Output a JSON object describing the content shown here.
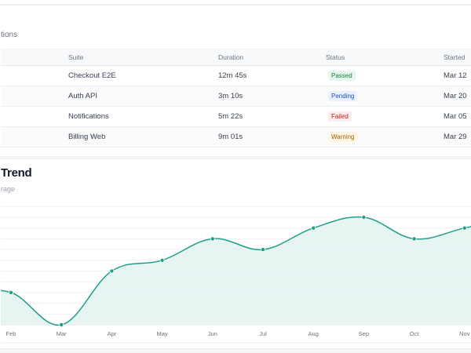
{
  "table_section": {
    "subtitle_fragment": "tions",
    "columns": [
      "",
      "Suite",
      "Duration",
      "Status",
      "Started"
    ],
    "rows": [
      {
        "suite": "Checkout E2E",
        "duration": "12m 45s",
        "status": "Passed",
        "started": "Mar 12"
      },
      {
        "suite": "Auth API",
        "duration": "3m 10s",
        "status": "Pending",
        "started": "Mar 20"
      },
      {
        "suite": "Notifications",
        "duration": "5m 22s",
        "status": "Failed",
        "started": "Mar 05"
      },
      {
        "suite": "Billing Web",
        "duration": "9m 01s",
        "status": "Warning",
        "started": "Mar 29"
      }
    ],
    "status_colors": {
      "Passed": {
        "fg": "#15803d",
        "bg": "#e7f7ee"
      },
      "Pending": {
        "fg": "#1d4ed8",
        "bg": "#eaf1fd"
      },
      "Failed": {
        "fg": "#b91c1c",
        "bg": "#fdecec"
      },
      "Warning": {
        "fg": "#a16207",
        "bg": "#fdf6e3"
      }
    }
  },
  "chart_section": {
    "title_fragment": "Trend",
    "subtitle_fragment": "rage"
  },
  "chart_data": {
    "type": "area",
    "title": "Trend",
    "subtitle": "rage",
    "categories": [
      "Feb",
      "Mar",
      "Apr",
      "May",
      "Jun",
      "Jul",
      "Aug",
      "Sep",
      "Oct",
      "Nov"
    ],
    "values": [
      3,
      0,
      5,
      6,
      8,
      7,
      9,
      10,
      8,
      9
    ],
    "xlabel": "",
    "ylabel": "",
    "y_axis_visible": false,
    "grid": true,
    "line_color": "#1f9e89",
    "fill_color": "#e2f3f0",
    "smooth": true,
    "markers": true,
    "note": "Values are relative estimates in gridline steps; no y-axis labels visible (image cropped)"
  }
}
